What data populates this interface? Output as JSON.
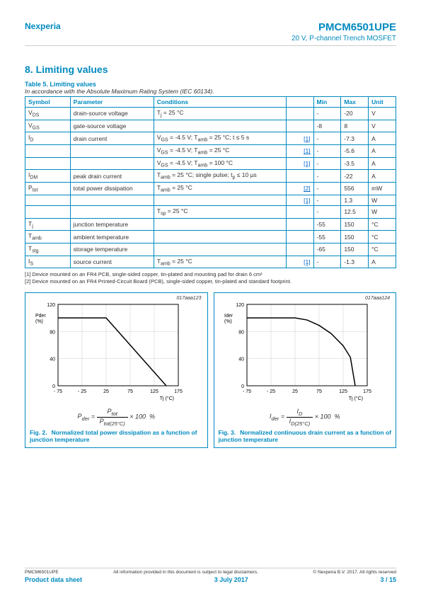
{
  "header": {
    "brand": "Nexperia",
    "product": "PMCM6501UPE",
    "subtitle": "20 V, P-channel Trench MOSFET"
  },
  "section": {
    "number": "8.",
    "title": "Limiting values"
  },
  "tableTitle": "Table 5. Limiting values",
  "accordance": "In accordance with the Absolute Maximum Rating System (IEC 60134).",
  "columns": [
    "Symbol",
    "Parameter",
    "Conditions",
    "",
    "Min",
    "Max",
    "Unit"
  ],
  "rows": [
    {
      "sym": "V_DS",
      "param": "drain-source voltage",
      "cond": "T_j = 25 °C",
      "ref": "",
      "min": "-",
      "max": "-20",
      "unit": "V"
    },
    {
      "sym": "V_GS",
      "param": "gate-source voltage",
      "cond": "",
      "ref": "",
      "min": "-8",
      "max": "8",
      "unit": "V"
    },
    {
      "sym": "I_D",
      "param": "drain current",
      "cond": "V_GS = -4.5 V; T_amb = 25 °C; t ≤ 5 s",
      "ref": "[1]",
      "min": "-",
      "max": "-7.3",
      "unit": "A"
    },
    {
      "sym": "",
      "param": "",
      "cond": "V_GS = -4.5 V; T_amb = 25 °C",
      "ref": "[1]",
      "min": "-",
      "max": "-5.6",
      "unit": "A"
    },
    {
      "sym": "",
      "param": "",
      "cond": "V_GS = -4.5 V; T_amb = 100 °C",
      "ref": "[1]",
      "min": "-",
      "max": "-3.5",
      "unit": "A"
    },
    {
      "sym": "I_DM",
      "param": "peak drain current",
      "cond": "T_amb = 25 °C; single pulse; t_p ≤  10 µs",
      "ref": "",
      "min": "-",
      "max": "-22",
      "unit": "A"
    },
    {
      "sym": "P_tot",
      "param": "total power dissipation",
      "cond": "T_amb = 25 °C",
      "ref": "[2]",
      "min": "-",
      "max": "556",
      "unit": "mW"
    },
    {
      "sym": "",
      "param": "",
      "cond": "",
      "ref": "[1]",
      "min": "-",
      "max": "1.3",
      "unit": "W"
    },
    {
      "sym": "",
      "param": "",
      "cond": "T_sp = 25 °C",
      "ref": "",
      "min": "-",
      "max": "12.5",
      "unit": "W"
    },
    {
      "sym": "T_j",
      "param": "junction temperature",
      "cond": "",
      "ref": "",
      "min": "-55",
      "max": "150",
      "unit": "°C"
    },
    {
      "sym": "T_amb",
      "param": "ambient temperature",
      "cond": "",
      "ref": "",
      "min": "-55",
      "max": "150",
      "unit": "°C"
    },
    {
      "sym": "T_stg",
      "param": "storage temperature",
      "cond": "",
      "ref": "",
      "min": "-65",
      "max": "150",
      "unit": "°C"
    },
    {
      "sym": "I_S",
      "param": "source current",
      "cond": "T_amb = 25 °C",
      "ref": "[1]",
      "min": "-",
      "max": "-1.3",
      "unit": "A"
    }
  ],
  "footnotes": [
    "[1]    Device mounted on an FR4 PCB, single-sided copper, tin-plated and mounting pad for drain 6 cm²",
    "[2]    Device mounted on an FR4 Printed-Circuit Board (PCB), single-sided copper, tin-plated and standard footprint."
  ],
  "figures": {
    "fig2": {
      "id": "017aaa123",
      "type": "line",
      "ylabel": "P_der (%)",
      "xlabel": "T_j (°C)",
      "xlim": [
        -75,
        175
      ],
      "xticks": [
        -75,
        -25,
        25,
        75,
        125,
        175
      ],
      "ylim": [
        0,
        120
      ],
      "yticks": [
        0,
        40,
        80,
        120
      ],
      "line_color": "#000000",
      "grid_color": "#cccccc",
      "background": "#ffffff",
      "points": [
        [
          -75,
          100
        ],
        [
          25,
          100
        ],
        [
          150,
          0
        ]
      ],
      "formula": "P_der = P_tot / P_tot(25°C) × 100 %",
      "caption_num": "Fig. 2.",
      "caption": "Normalized total power dissipation as a function of junction temperature"
    },
    "fig3": {
      "id": "017aaa124",
      "type": "line",
      "ylabel": "I_der (%)",
      "xlabel": "T_j (°C)",
      "xlim": [
        -75,
        175
      ],
      "xticks": [
        -75,
        -25,
        25,
        75,
        125,
        175
      ],
      "ylim": [
        0,
        120
      ],
      "yticks": [
        0,
        40,
        80,
        120
      ],
      "line_color": "#000000",
      "grid_color": "#cccccc",
      "background": "#ffffff",
      "points": [
        [
          -75,
          100
        ],
        [
          25,
          100
        ],
        [
          50,
          97
        ],
        [
          75,
          89
        ],
        [
          100,
          77
        ],
        [
          125,
          59
        ],
        [
          140,
          42
        ],
        [
          150,
          0
        ]
      ],
      "formula": "I_der = I_D / I_D(25°C) × 100 %",
      "caption_num": "Fig. 3.",
      "caption": "Normalized continuous drain current as a function of junction temperature"
    }
  },
  "footer": {
    "tl": "PMCM6501UPE",
    "tc": "All information provided in this document is subject to legal disclaimers.",
    "tr": "© Nexperia B.V. 2017. All rights reserved",
    "bl": "Product data sheet",
    "bc": "3 July 2017",
    "br": "3 / 15"
  }
}
